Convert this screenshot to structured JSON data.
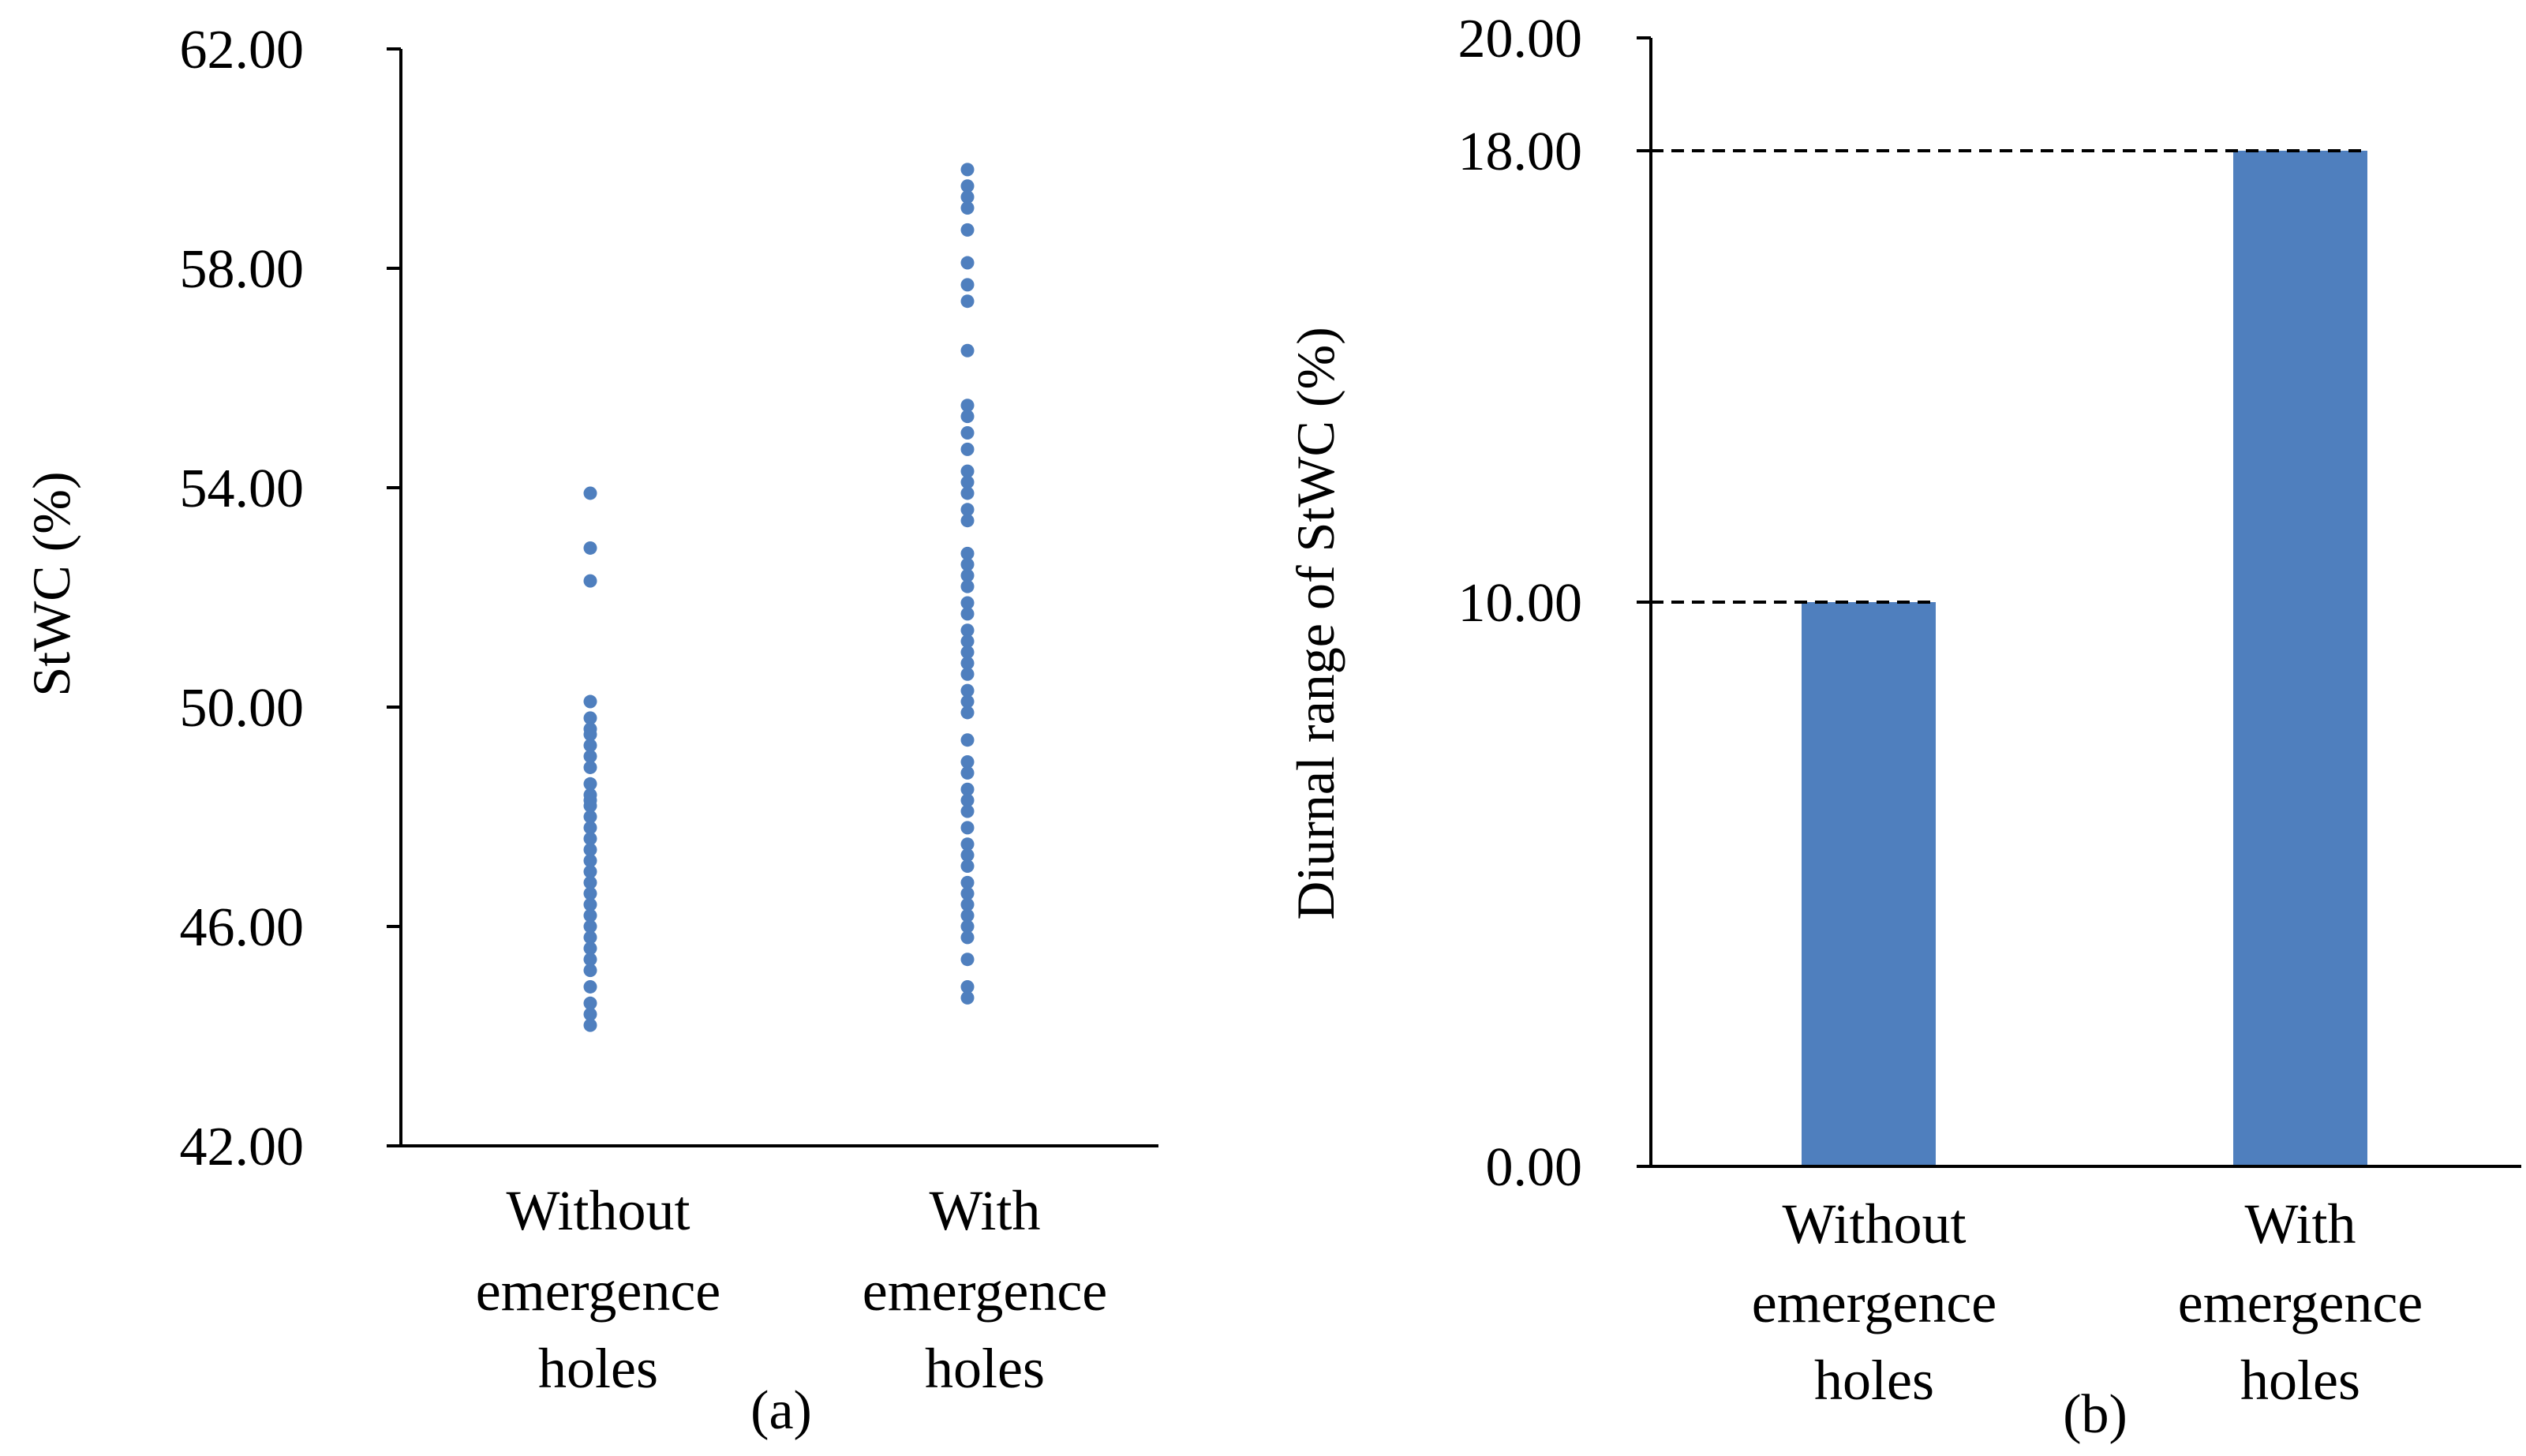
{
  "colors": {
    "point": "#4f7fbe",
    "bar": "#4f7fbe",
    "axis": "#000000"
  },
  "chart_data": [
    {
      "type": "scatter",
      "panel_label": "(a)",
      "ylabel": "StWC (%)",
      "ylim": [
        42,
        62
      ],
      "yticks": [
        "42.00",
        "46.00",
        "50.00",
        "54.00",
        "58.00",
        "62.00"
      ],
      "categories": [
        [
          "Without",
          "emergence",
          "holes"
        ],
        [
          "With",
          "emergence",
          "holes"
        ]
      ],
      "series": [
        {
          "name": "Without emergence holes",
          "values": [
            53.9,
            52.9,
            52.3,
            50.1,
            49.8,
            49.6,
            49.5,
            49.3,
            49.1,
            48.9,
            48.6,
            48.4,
            48.3,
            48.2,
            48.0,
            47.8,
            47.6,
            47.4,
            47.2,
            47.0,
            46.8,
            46.6,
            46.4,
            46.2,
            46.0,
            45.8,
            45.6,
            45.4,
            45.2,
            44.9,
            44.6,
            44.4,
            44.2
          ]
        },
        {
          "name": "With emergence holes",
          "values": [
            59.8,
            59.5,
            59.3,
            59.1,
            58.7,
            58.1,
            57.7,
            57.4,
            56.5,
            55.5,
            55.3,
            55.0,
            54.7,
            54.3,
            54.1,
            53.9,
            53.6,
            53.4,
            52.8,
            52.6,
            52.4,
            52.2,
            51.9,
            51.7,
            51.4,
            51.2,
            51.0,
            50.8,
            50.6,
            50.3,
            50.1,
            49.9,
            49.4,
            49.0,
            48.8,
            48.5,
            48.3,
            48.1,
            47.8,
            47.5,
            47.3,
            47.1,
            46.8,
            46.6,
            46.4,
            46.2,
            46.0,
            45.8,
            45.4,
            44.9,
            44.7
          ]
        }
      ]
    },
    {
      "type": "bar",
      "panel_label": "(b)",
      "ylabel": "Diurnal range of StWC (%)",
      "ylim": [
        0,
        20
      ],
      "yticks": [
        "0.00",
        "10.00",
        "18.00",
        "20.00"
      ],
      "categories": [
        [
          "Without",
          "emergence",
          "holes"
        ],
        [
          "With",
          "emergence",
          "holes"
        ]
      ],
      "values": [
        10.0,
        18.0
      ],
      "reference_lines": [
        10.0,
        18.0
      ]
    }
  ]
}
